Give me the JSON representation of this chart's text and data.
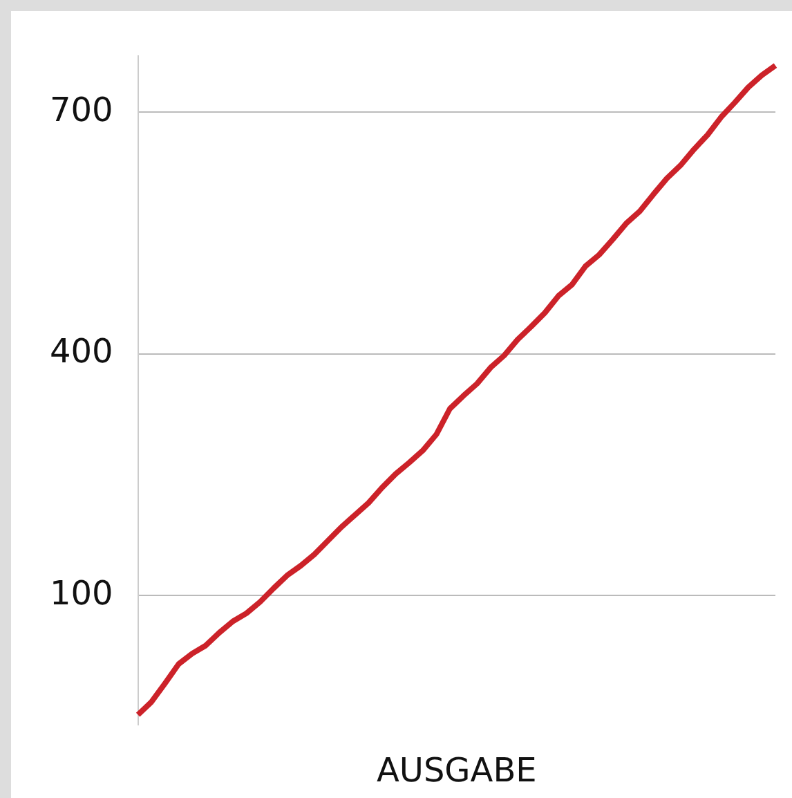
{
  "chart_data": {
    "type": "line",
    "xlabel": "AUSGABE",
    "categories": [
      null,
      null,
      null,
      null,
      null,
      null,
      null,
      null,
      null,
      null,
      null,
      null,
      null,
      null,
      null,
      null,
      null,
      null,
      null,
      null,
      null,
      null,
      null,
      null,
      null,
      null,
      null,
      null,
      null,
      null,
      null,
      null,
      null,
      null,
      null,
      null,
      null,
      null,
      null,
      null,
      null,
      null,
      null,
      null,
      null,
      null,
      null,
      null
    ],
    "series": [
      {
        "color": "#cc2229",
        "values": [
          -48,
          -32,
          -9,
          15,
          28,
          38,
          54,
          68,
          78,
          92,
          109,
          125,
          137,
          151,
          168,
          185,
          200,
          215,
          234,
          251,
          265,
          280,
          300,
          332,
          348,
          363,
          383,
          398,
          418,
          434,
          451,
          472,
          486,
          509,
          523,
          542,
          562,
          577,
          598,
          618,
          634,
          654,
          672,
          694,
          712,
          731,
          746,
          758
        ]
      }
    ],
    "ylim": [
      -60,
      770
    ],
    "yticks": [
      100,
      400,
      700
    ],
    "grid": "y",
    "legend": false,
    "marker": "none",
    "line_style": "solid"
  }
}
